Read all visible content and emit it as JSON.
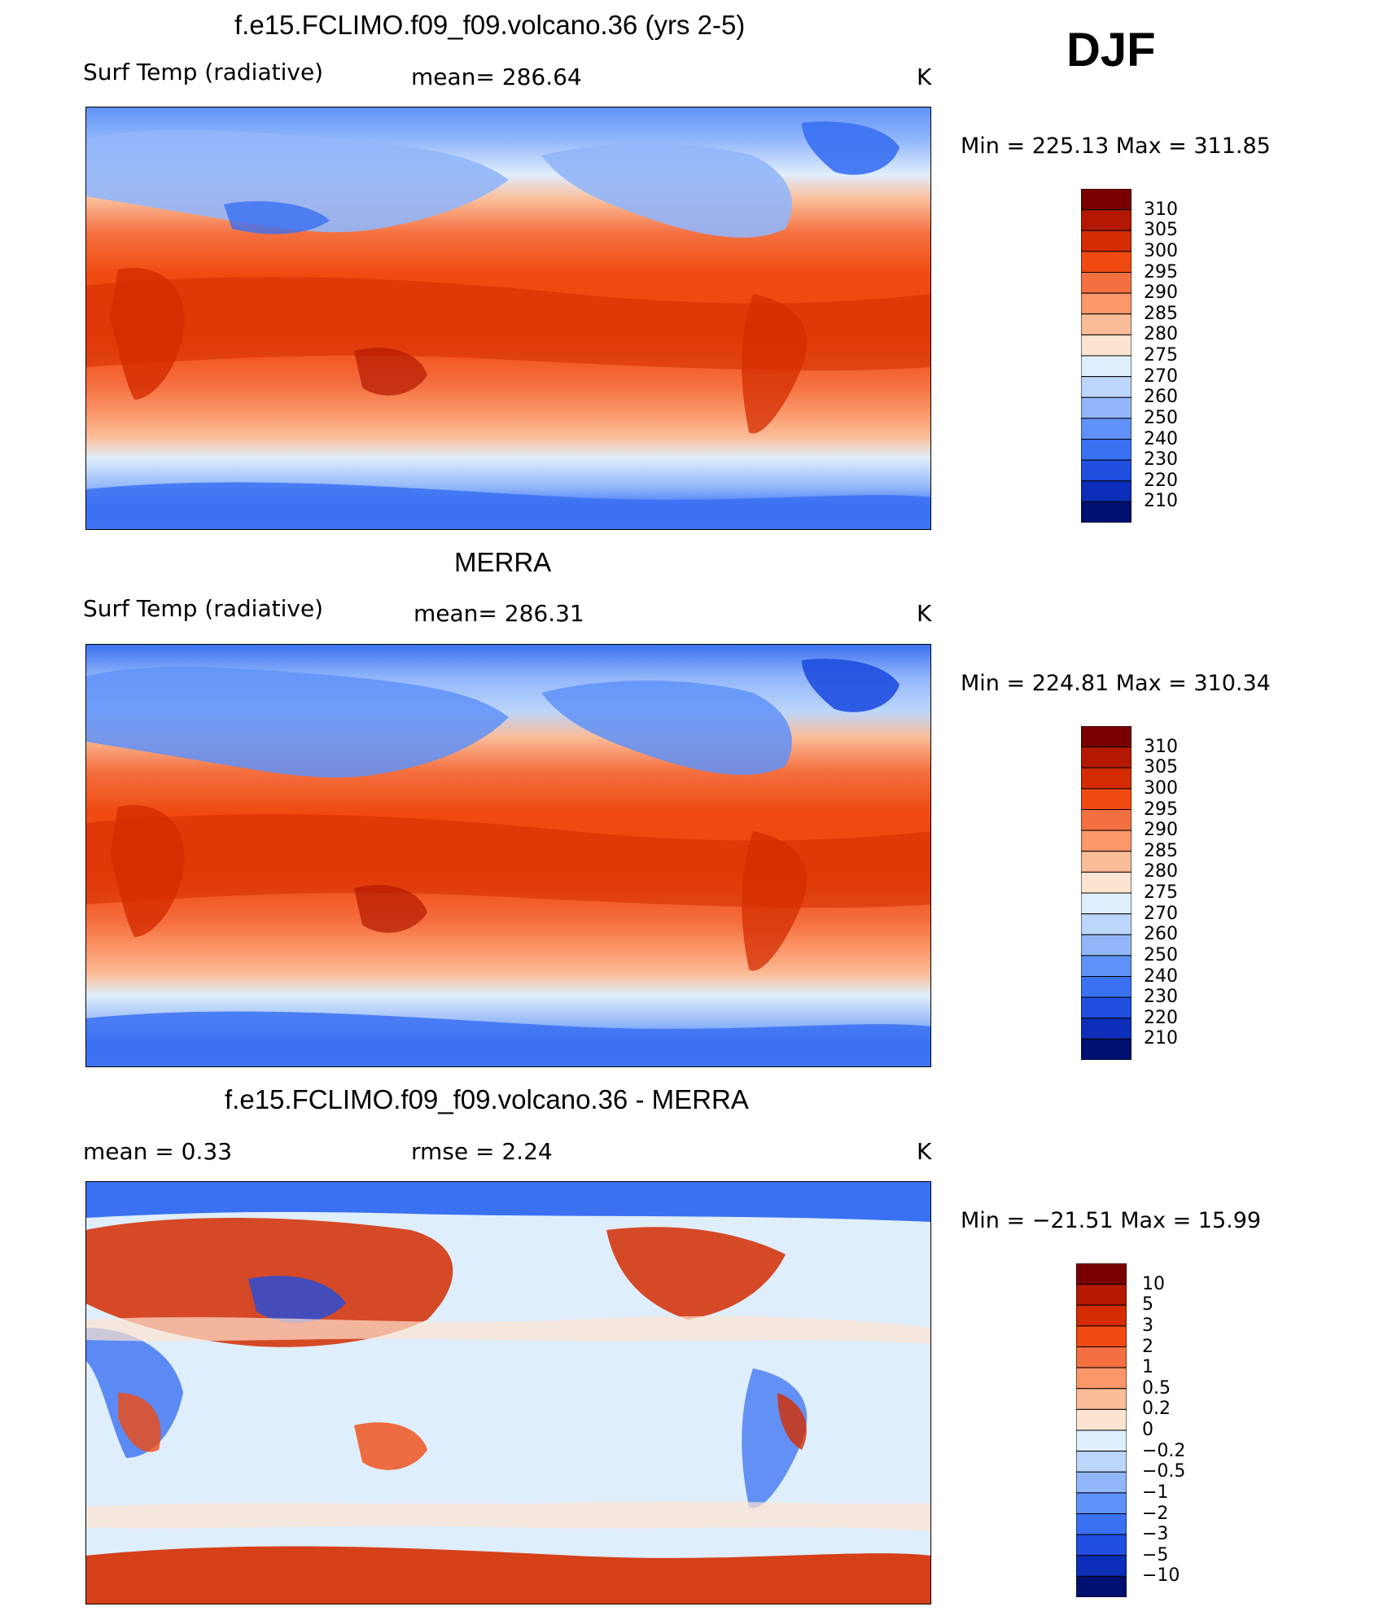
{
  "season": "DJF",
  "units": "K",
  "panels": [
    {
      "title": "f.e15.FCLIMO.f09_f09.volcano.36 (yrs 2-5)",
      "variable": "Surf Temp (radiative)",
      "stat1": "mean=  286.64",
      "stat2": "",
      "units": "K",
      "range": "Min  =  225.13  Max  =  311.85",
      "colorbar": {
        "labels": [
          "310",
          "305",
          "300",
          "295",
          "290",
          "285",
          "280",
          "275",
          "270",
          "260",
          "250",
          "240",
          "230",
          "220",
          "210"
        ],
        "colors": [
          "#7a0000",
          "#b41800",
          "#d42c00",
          "#f04a10",
          "#f57040",
          "#fb9668",
          "#fbbc98",
          "#fde4d0",
          "#dfeefc",
          "#bcd6fb",
          "#92b6fa",
          "#5f92f8",
          "#3a70f2",
          "#1f4ee0",
          "#0c2eb8",
          "#001070"
        ]
      }
    },
    {
      "title": "MERRA",
      "variable": "Surf Temp (radiative)",
      "stat1": "mean=  286.31",
      "stat2": "",
      "units": "K",
      "range": "Min  =  224.81  Max  =  310.34",
      "colorbar": {
        "labels": [
          "310",
          "305",
          "300",
          "295",
          "290",
          "285",
          "280",
          "275",
          "270",
          "260",
          "250",
          "240",
          "230",
          "220",
          "210"
        ],
        "colors": [
          "#7a0000",
          "#b41800",
          "#d42c00",
          "#f04a10",
          "#f57040",
          "#fb9668",
          "#fbbc98",
          "#fde4d0",
          "#dfeefc",
          "#bcd6fb",
          "#92b6fa",
          "#5f92f8",
          "#3a70f2",
          "#1f4ee0",
          "#0c2eb8",
          "#001070"
        ]
      }
    },
    {
      "title": "f.e15.FCLIMO.f09_f09.volcano.36 - MERRA",
      "variable": "mean =      0.33",
      "stat1": "rmse =      2.24",
      "stat2": "",
      "units": "K",
      "range": "Min  =  −21.51  Max  =    15.99",
      "colorbar": {
        "labels": [
          "10",
          "5",
          "3",
          "2",
          "1",
          "0.5",
          "0.2",
          "0",
          "−0.2",
          "−0.5",
          "−1",
          "−2",
          "−3",
          "−5",
          "−10"
        ],
        "colors": [
          "#7a0000",
          "#b41800",
          "#d42c00",
          "#f04a10",
          "#f57040",
          "#fb9668",
          "#fbbc98",
          "#fde4d0",
          "#dfeefc",
          "#bcd6fb",
          "#92b6fa",
          "#5f92f8",
          "#3a70f2",
          "#1f4ee0",
          "#0c2eb8",
          "#001070"
        ]
      }
    }
  ]
}
